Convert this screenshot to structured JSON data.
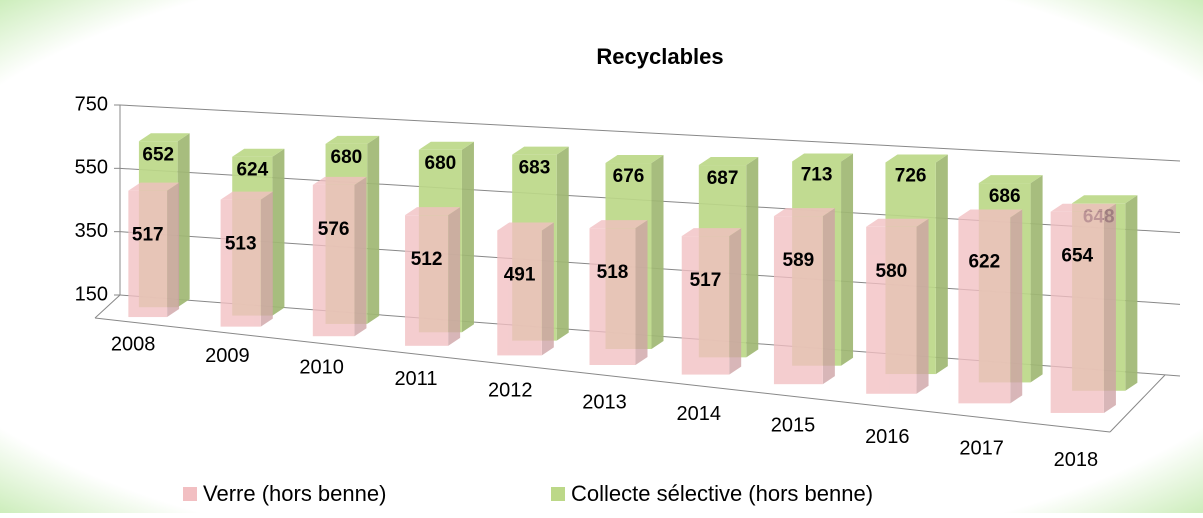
{
  "chart_data": {
    "type": "bar3d",
    "title": "Recyclables",
    "categories": [
      "2008",
      "2009",
      "2010",
      "2011",
      "2012",
      "2013",
      "2014",
      "2015",
      "2016",
      "2017",
      "2018"
    ],
    "series": [
      {
        "name": "Verre (hors benne)",
        "color": "#f2bfc2",
        "values": [
          517,
          513,
          576,
          512,
          491,
          518,
          517,
          589,
          580,
          622,
          654
        ]
      },
      {
        "name": "Collecte sélective (hors benne)",
        "color": "#bcd888",
        "values": [
          652,
          624,
          680,
          680,
          683,
          676,
          687,
          713,
          726,
          686,
          648
        ]
      }
    ],
    "ylim": [
      150,
      750
    ],
    "yticks": [
      150,
      350,
      550,
      750
    ],
    "grid": true,
    "legend": "bottom"
  }
}
